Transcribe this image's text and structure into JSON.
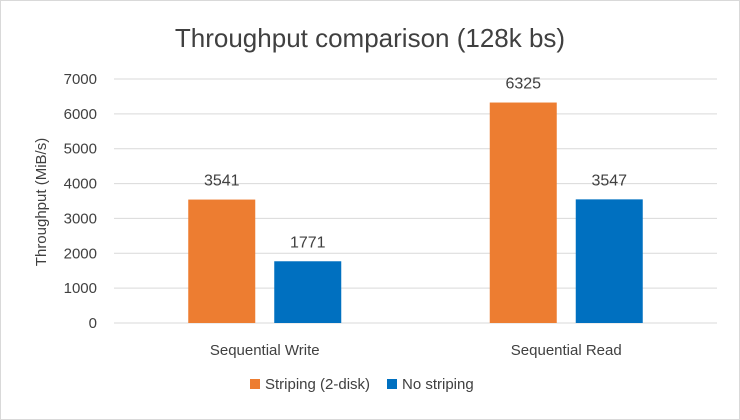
{
  "chart_data": {
    "type": "bar",
    "title": "Throughput comparison (128k bs)",
    "xlabel": "",
    "ylabel": "Throughput (MiB/s)",
    "categories": [
      "Sequential Write",
      "Sequential Read"
    ],
    "series": [
      {
        "name": "Striping (2-disk)",
        "values": [
          3541,
          6325
        ],
        "color": "#ED7D31"
      },
      {
        "name": "No striping",
        "values": [
          1771,
          3547
        ],
        "color": "#0070C0"
      }
    ],
    "ylim": [
      0,
      7000
    ],
    "yticks": [
      "0",
      "1000",
      "2000",
      "3000",
      "4000",
      "5000",
      "6000",
      "7000"
    ],
    "data_labels": true,
    "grid": true,
    "legend": "bottom"
  }
}
